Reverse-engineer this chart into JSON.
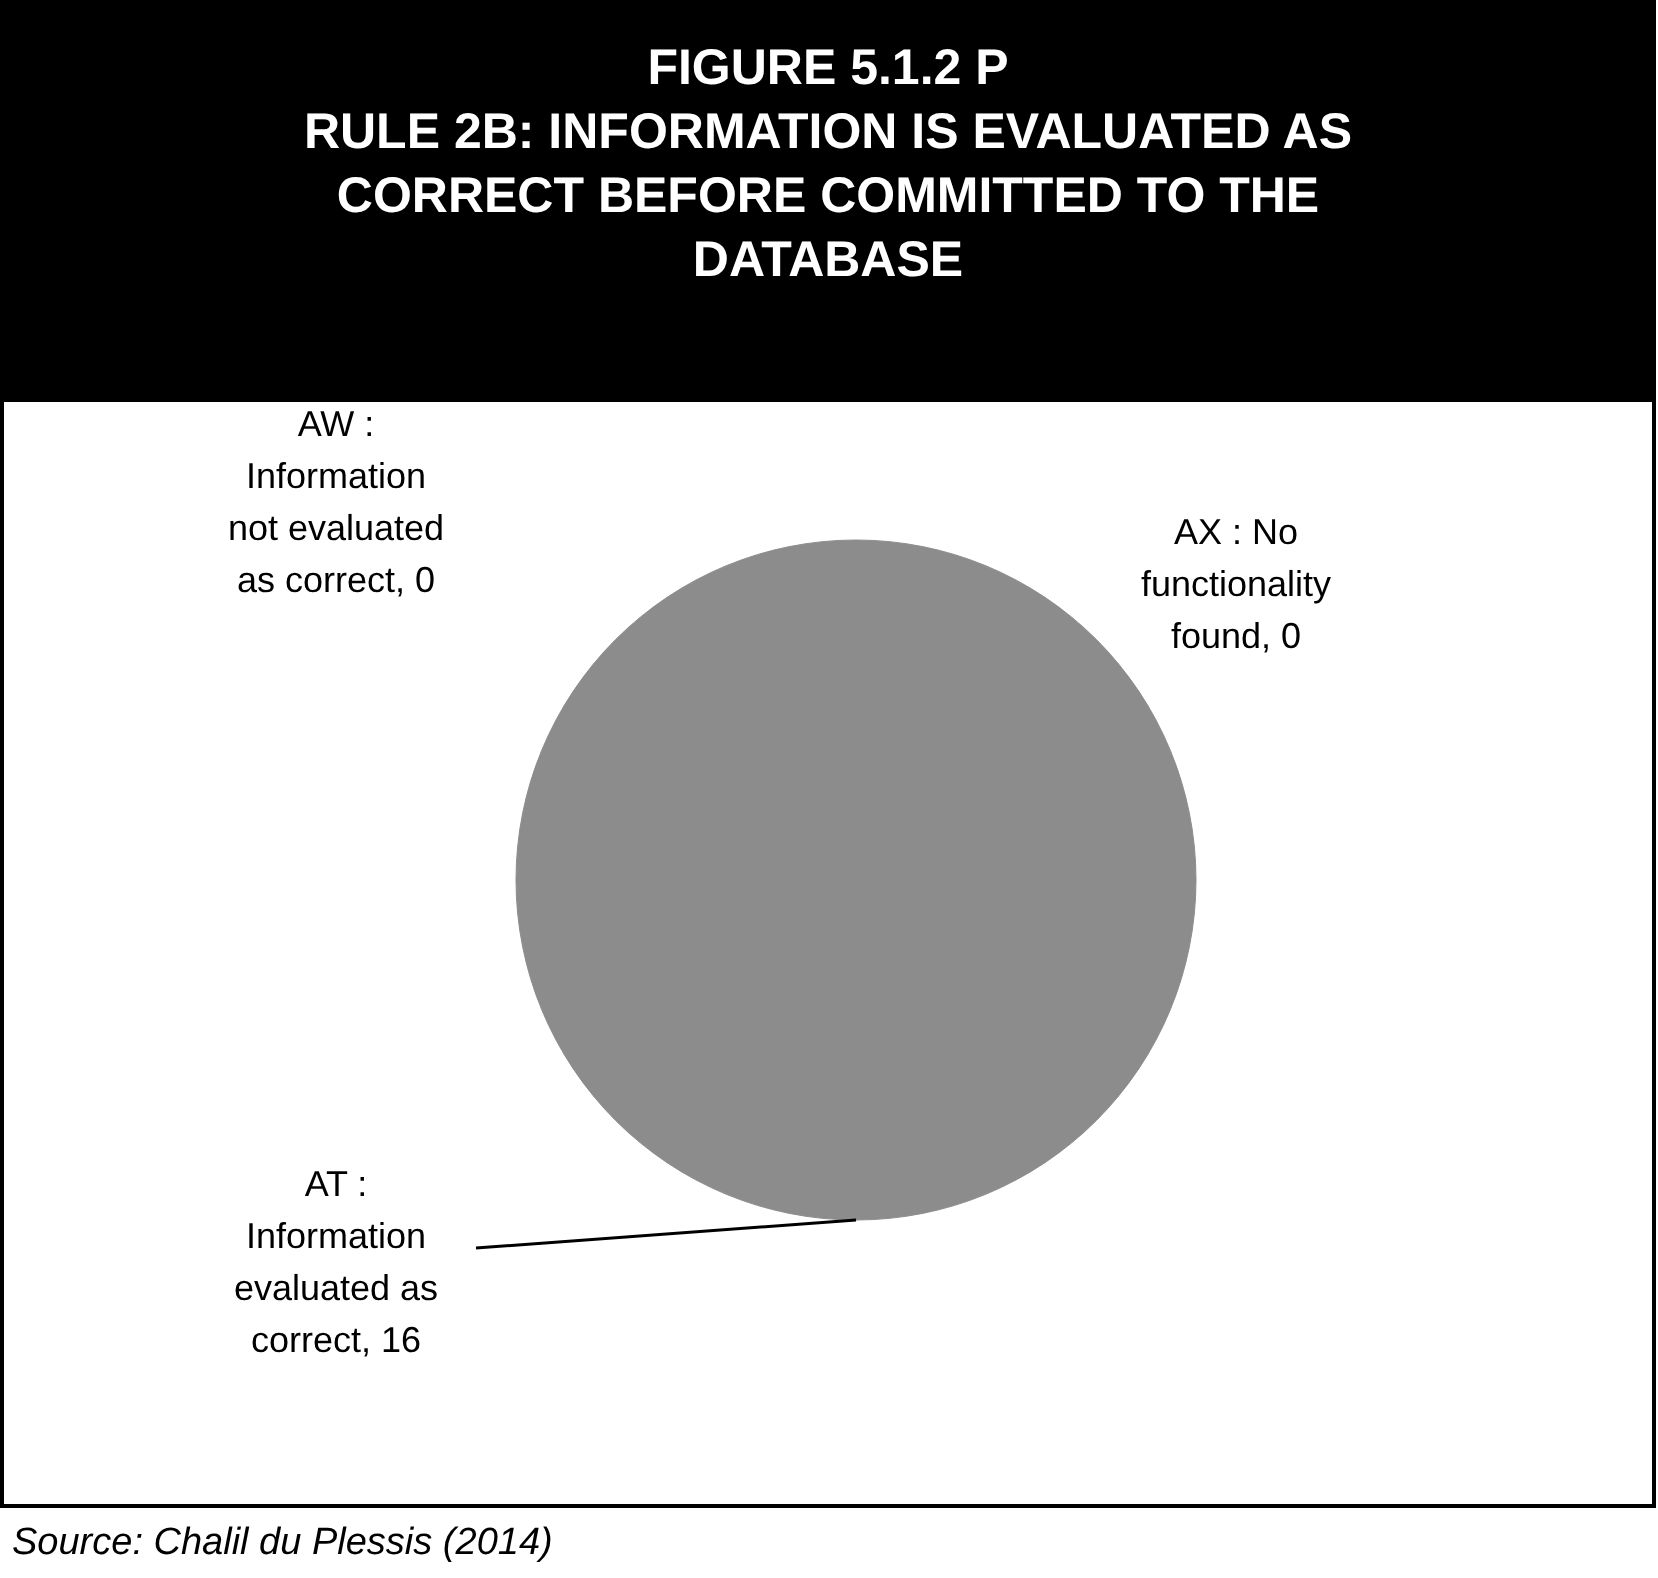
{
  "chart_data": {
    "type": "pie",
    "title": "FIGURE 5.1.2 P\nRULE 2B: INFORMATION IS EVALUATED AS CORRECT BEFORE COMMITTED TO THE DATABASE",
    "categories": [
      "AT : Information evaluated as correct",
      "AW : Information not evaluated as correct",
      "AX : No functionality found"
    ],
    "value_labels": [
      ", 16",
      ", 0",
      ", 0"
    ],
    "values": [
      16,
      0,
      0
    ],
    "colors": [
      "#8c8c8c",
      "#7a7a7a",
      "#6a6a6a"
    ],
    "annotations": [
      "Source: Chalil du Plessis (2014)"
    ]
  }
}
